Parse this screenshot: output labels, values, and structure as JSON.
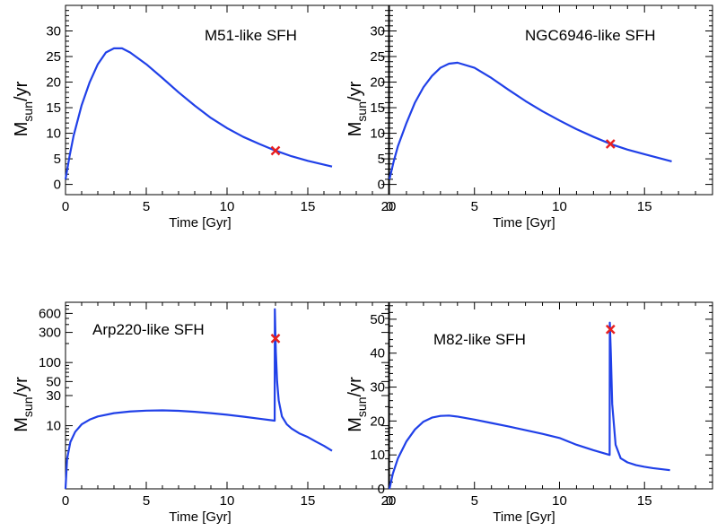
{
  "chart_data": [
    {
      "type": "line",
      "title": "M51-like SFH",
      "xlabel": "Time [Gyr]",
      "ylabel": {
        "main": "M",
        "sub": "sun",
        "suffix": "/yr"
      },
      "xlim": [
        0,
        20
      ],
      "ylim": [
        -2,
        35
      ],
      "yscale": "linear",
      "xticks": [
        0,
        5,
        10,
        15,
        20
      ],
      "yticks": [
        0,
        5,
        10,
        15,
        20,
        25,
        30
      ],
      "line_color": "#2040e8",
      "marker_color": "#e82020",
      "marker": {
        "x": 13.0,
        "y": 6.6
      },
      "series": [
        {
          "x": [
            0,
            0.25,
            0.5,
            1,
            1.5,
            2,
            2.5,
            3,
            3.5,
            4,
            5,
            6,
            7,
            8,
            9,
            10,
            11,
            12,
            13,
            14,
            15,
            16.5
          ],
          "y": [
            1.0,
            5.5,
            9.5,
            15.5,
            20.0,
            23.5,
            25.8,
            26.6,
            26.6,
            25.8,
            23.5,
            20.8,
            18.0,
            15.4,
            13.0,
            11.0,
            9.3,
            7.9,
            6.6,
            5.5,
            4.6,
            3.5
          ]
        }
      ]
    },
    {
      "type": "line",
      "title": "NGC6946-like SFH",
      "xlabel": "Time [Gyr]",
      "ylabel": {
        "main": "M",
        "sub": "sun",
        "suffix": "/yr"
      },
      "xlim": [
        0,
        19
      ],
      "ylim": [
        -2,
        35
      ],
      "yscale": "linear",
      "xticks": [
        0,
        5,
        10,
        15
      ],
      "yticks": [
        0,
        5,
        10,
        15,
        20,
        25,
        30
      ],
      "line_color": "#2040e8",
      "marker_color": "#e82020",
      "marker": {
        "x": 13.0,
        "y": 7.9
      },
      "series": [
        {
          "x": [
            0,
            0.25,
            0.5,
            1,
            1.5,
            2,
            2.5,
            3,
            3.5,
            4,
            5,
            6,
            7,
            8,
            9,
            10,
            11,
            12,
            13,
            14,
            15,
            16.6
          ],
          "y": [
            1.0,
            4.5,
            7.5,
            12.0,
            16.0,
            19.0,
            21.2,
            22.8,
            23.6,
            23.8,
            22.8,
            20.8,
            18.5,
            16.3,
            14.3,
            12.5,
            10.8,
            9.3,
            7.9,
            6.8,
            5.9,
            4.5
          ]
        }
      ]
    },
    {
      "type": "line",
      "title": "Arp220-like SFH",
      "xlabel": "Time [Gyr]",
      "ylabel": {
        "main": "M",
        "sub": "sun",
        "suffix": "/yr"
      },
      "xlim": [
        0,
        20
      ],
      "ylim": [
        1,
        900
      ],
      "yscale": "log",
      "xticks": [
        0,
        5,
        10,
        15,
        20
      ],
      "yticks": [
        10,
        30,
        50,
        100,
        300,
        600
      ],
      "line_color": "#2040e8",
      "marker_color": "#e82020",
      "marker": {
        "x": 13.0,
        "y": 240
      },
      "series": [
        {
          "x": [
            0,
            0.1,
            0.3,
            0.6,
            1,
            1.5,
            2,
            3,
            4,
            5,
            6,
            7,
            8,
            9,
            10,
            11,
            12,
            12.95,
            12.96,
            13.02,
            13.1,
            13.2,
            13.4,
            13.7,
            14.0,
            14.5,
            15,
            15.5,
            16.0,
            16.5
          ],
          "y": [
            1.0,
            3.0,
            5.5,
            8.0,
            10.5,
            12.5,
            14.0,
            15.8,
            16.8,
            17.3,
            17.5,
            17.2,
            16.6,
            15.8,
            14.9,
            13.9,
            12.9,
            12.0,
            700,
            150,
            50,
            25,
            14.0,
            10.5,
            9.0,
            7.5,
            6.6,
            5.6,
            4.8,
            4.0
          ]
        }
      ]
    },
    {
      "type": "line",
      "title": "M82-like SFH",
      "xlabel": "Time [Gyr]",
      "ylabel": {
        "main": "M",
        "sub": "sun",
        "suffix": "/yr"
      },
      "xlim": [
        0,
        19
      ],
      "ylim": [
        0,
        55
      ],
      "yscale": "linear",
      "xticks": [
        0,
        5,
        10,
        15
      ],
      "yticks": [
        0,
        10,
        20,
        30,
        40,
        50
      ],
      "line_color": "#2040e8",
      "marker_color": "#e82020",
      "marker": {
        "x": 13.0,
        "y": 47.0
      },
      "series": [
        {
          "x": [
            0,
            0.2,
            0.5,
            1,
            1.5,
            2,
            2.5,
            3,
            3.5,
            4,
            5,
            6,
            7,
            8,
            9,
            10,
            11,
            12,
            12.95,
            12.96,
            13.02,
            13.1,
            13.3,
            13.6,
            14.0,
            14.5,
            15,
            15.5,
            16,
            16.5
          ],
          "y": [
            0,
            4.5,
            9.0,
            14.0,
            17.5,
            19.8,
            21.0,
            21.5,
            21.6,
            21.3,
            20.4,
            19.4,
            18.4,
            17.3,
            16.2,
            15.0,
            13.0,
            11.4,
            10.0,
            49.0,
            40.0,
            25.0,
            13.0,
            9.0,
            7.8,
            7.0,
            6.5,
            6.1,
            5.8,
            5.5
          ]
        }
      ]
    }
  ]
}
